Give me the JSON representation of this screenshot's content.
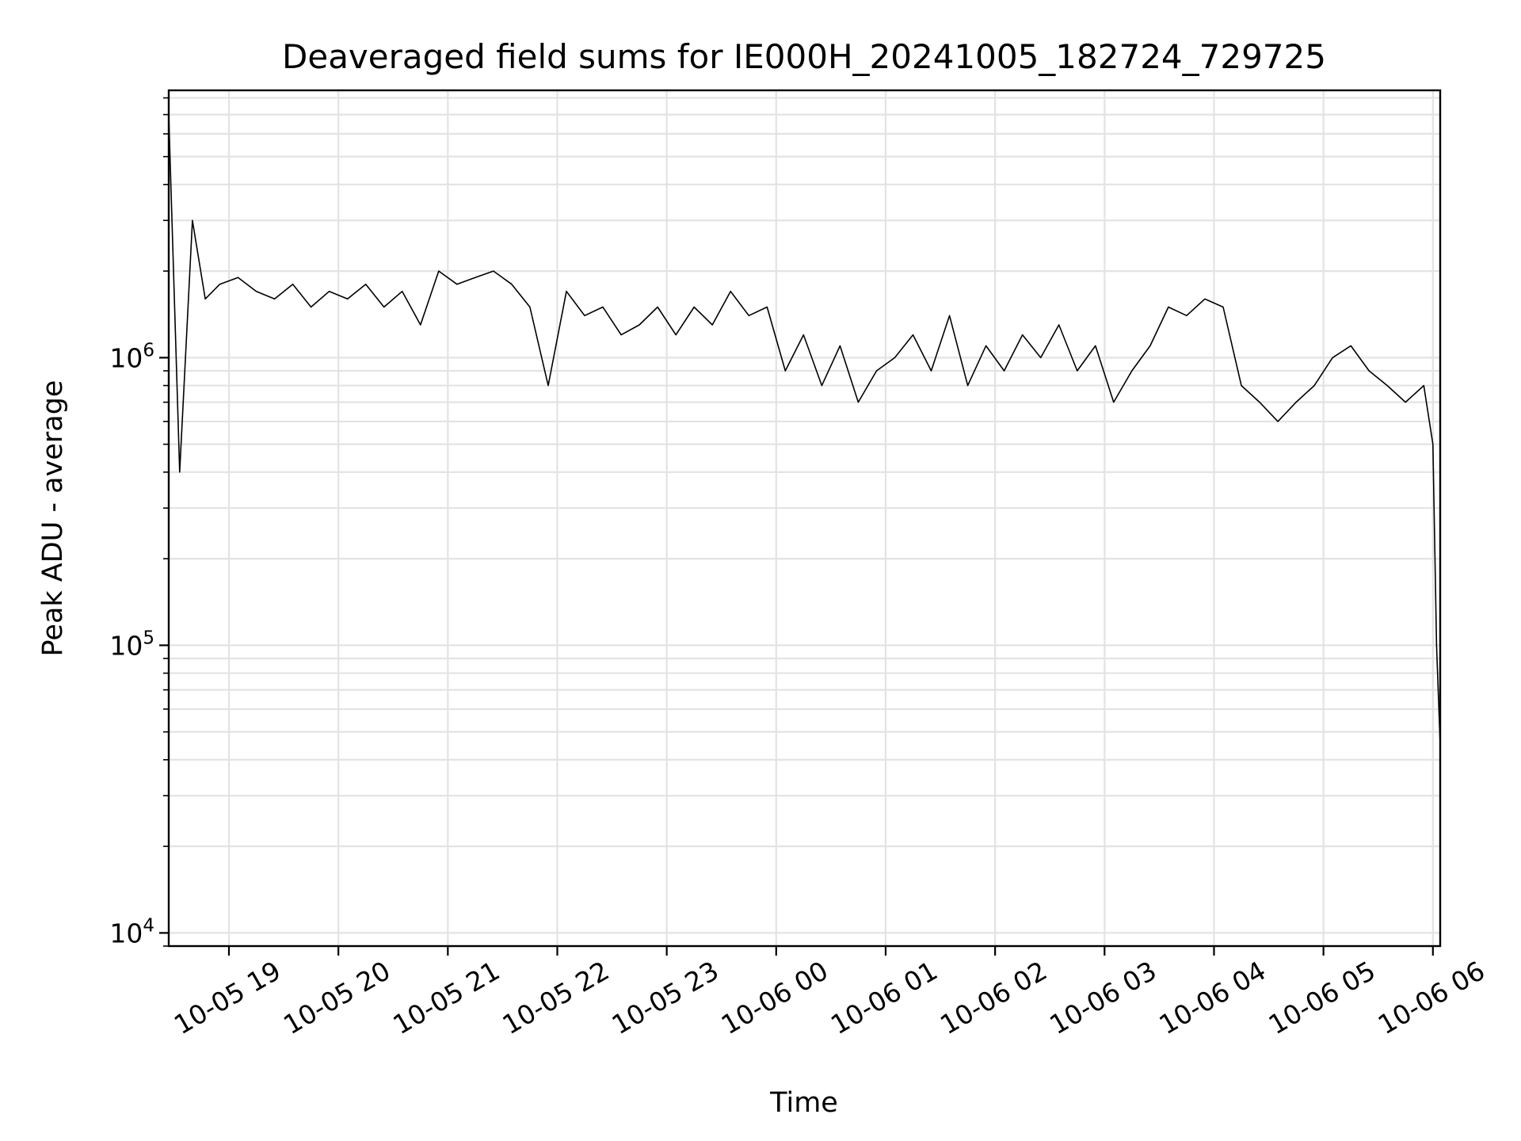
{
  "chart_data": {
    "type": "line",
    "title": "Deaveraged field sums for IE000H_20241005_182724_729725",
    "xlabel": "Time",
    "ylabel": "Peak ADU - average",
    "x_range": [
      "2024-10-05 18:27",
      "2024-10-06 06:04"
    ],
    "y_range": [
      9000,
      8500000
    ],
    "y_scale": "log",
    "grid": true,
    "line_color": "#000000",
    "x_ticks": [
      {
        "value": "2024-10-05 19:00",
        "label": "10-05 19"
      },
      {
        "value": "2024-10-05 20:00",
        "label": "10-05 20"
      },
      {
        "value": "2024-10-05 21:00",
        "label": "10-05 21"
      },
      {
        "value": "2024-10-05 22:00",
        "label": "10-05 22"
      },
      {
        "value": "2024-10-05 23:00",
        "label": "10-05 23"
      },
      {
        "value": "2024-10-06 00:00",
        "label": "10-06 00"
      },
      {
        "value": "2024-10-06 01:00",
        "label": "10-06 01"
      },
      {
        "value": "2024-10-06 02:00",
        "label": "10-06 02"
      },
      {
        "value": "2024-10-06 03:00",
        "label": "10-06 03"
      },
      {
        "value": "2024-10-06 04:00",
        "label": "10-06 04"
      },
      {
        "value": "2024-10-06 05:00",
        "label": "10-06 05"
      },
      {
        "value": "2024-10-06 06:00",
        "label": "10-06 06"
      }
    ],
    "y_ticks": [
      {
        "value": 10000,
        "base": "10",
        "exp": "4"
      },
      {
        "value": 100000,
        "base": "10",
        "exp": "5"
      },
      {
        "value": 1000000,
        "base": "10",
        "exp": "6"
      }
    ],
    "series": [
      {
        "x": [
          "2024-10-05 18:27",
          "2024-10-05 18:33",
          "2024-10-05 18:40",
          "2024-10-05 18:47",
          "2024-10-05 18:55",
          "2024-10-05 19:05",
          "2024-10-05 19:15",
          "2024-10-05 19:25",
          "2024-10-05 19:35",
          "2024-10-05 19:45",
          "2024-10-05 19:55",
          "2024-10-05 20:05",
          "2024-10-05 20:15",
          "2024-10-05 20:25",
          "2024-10-05 20:35",
          "2024-10-05 20:45",
          "2024-10-05 20:55",
          "2024-10-05 21:05",
          "2024-10-05 21:15",
          "2024-10-05 21:25",
          "2024-10-05 21:35",
          "2024-10-05 21:45",
          "2024-10-05 21:55",
          "2024-10-05 22:05",
          "2024-10-05 22:15",
          "2024-10-05 22:25",
          "2024-10-05 22:35",
          "2024-10-05 22:45",
          "2024-10-05 22:55",
          "2024-10-05 23:05",
          "2024-10-05 23:15",
          "2024-10-05 23:25",
          "2024-10-05 23:35",
          "2024-10-05 23:45",
          "2024-10-05 23:55",
          "2024-10-06 00:05",
          "2024-10-06 00:15",
          "2024-10-06 00:25",
          "2024-10-06 00:35",
          "2024-10-06 00:45",
          "2024-10-06 00:55",
          "2024-10-06 01:05",
          "2024-10-06 01:15",
          "2024-10-06 01:25",
          "2024-10-06 01:35",
          "2024-10-06 01:45",
          "2024-10-06 01:55",
          "2024-10-06 02:05",
          "2024-10-06 02:15",
          "2024-10-06 02:25",
          "2024-10-06 02:35",
          "2024-10-06 02:45",
          "2024-10-06 02:55",
          "2024-10-06 03:05",
          "2024-10-06 03:15",
          "2024-10-06 03:25",
          "2024-10-06 03:35",
          "2024-10-06 03:45",
          "2024-10-06 03:55",
          "2024-10-06 04:05",
          "2024-10-06 04:15",
          "2024-10-06 04:25",
          "2024-10-06 04:35",
          "2024-10-06 04:45",
          "2024-10-06 04:55",
          "2024-10-06 05:05",
          "2024-10-06 05:15",
          "2024-10-06 05:25",
          "2024-10-06 05:35",
          "2024-10-06 05:45",
          "2024-10-06 05:55",
          "2024-10-06 06:00",
          "2024-10-06 06:02",
          "2024-10-06 06:04"
        ],
        "y": [
          7000000,
          400000,
          3000000,
          1600000,
          1800000,
          1900000,
          1700000,
          1600000,
          1800000,
          1500000,
          1700000,
          1600000,
          1800000,
          1500000,
          1700000,
          1300000,
          2000000,
          1800000,
          1900000,
          2000000,
          1800000,
          1500000,
          800000,
          1700000,
          1400000,
          1500000,
          1200000,
          1300000,
          1500000,
          1200000,
          1500000,
          1300000,
          1700000,
          1400000,
          1500000,
          900000,
          1200000,
          800000,
          1100000,
          700000,
          900000,
          1000000,
          1200000,
          900000,
          1400000,
          800000,
          1100000,
          900000,
          1200000,
          1000000,
          1300000,
          900000,
          1100000,
          700000,
          900000,
          1100000,
          1500000,
          1400000,
          1600000,
          1500000,
          800000,
          700000,
          600000,
          700000,
          800000,
          1000000,
          1100000,
          900000,
          800000,
          700000,
          800000,
          500000,
          100000,
          45000
        ]
      }
    ]
  }
}
